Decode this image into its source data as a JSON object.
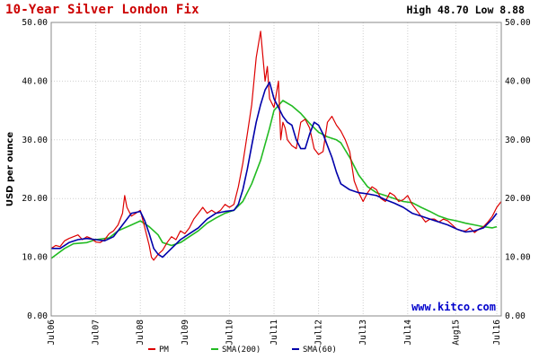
{
  "header": {
    "title": "10-Year Silver London Fix",
    "high_low": "High 48.70 Low 8.88"
  },
  "watermark": "www.kitco.com",
  "colors": {
    "pm": "#dd0000",
    "sma200": "#22bb22",
    "sma60": "#0000aa",
    "title": "#cc0000"
  },
  "chart_data": {
    "type": "line",
    "title": "10-Year Silver London Fix",
    "ylabel": "USD per ounce",
    "xlabel": "",
    "ylim": [
      0,
      50
    ],
    "xlim": [
      2006.5,
      2016.6
    ],
    "yticks": [
      "0.00",
      "10.00",
      "20.00",
      "30.00",
      "40.00",
      "50.00"
    ],
    "xticks": [
      {
        "label": "Jul06",
        "x": 2006.5
      },
      {
        "label": "Jul07",
        "x": 2007.5
      },
      {
        "label": "Jul08",
        "x": 2008.5
      },
      {
        "label": "Jul09",
        "x": 2009.5
      },
      {
        "label": "Jul10",
        "x": 2010.5
      },
      {
        "label": "Jul11",
        "x": 2011.5
      },
      {
        "label": "Jul12",
        "x": 2012.5
      },
      {
        "label": "Jul13",
        "x": 2013.5
      },
      {
        "label": "Jul14",
        "x": 2014.5
      },
      {
        "label": "Aug15",
        "x": 2015.58
      },
      {
        "label": "Jul16",
        "x": 2016.5
      }
    ],
    "grid": true,
    "legend_position": "bottom",
    "series": [
      {
        "name": "PM",
        "color": "#dd0000",
        "x": [
          2006.5,
          2006.6,
          2006.7,
          2006.8,
          2006.9,
          2007.0,
          2007.1,
          2007.2,
          2007.3,
          2007.4,
          2007.5,
          2007.6,
          2007.7,
          2007.8,
          2007.9,
          2008.0,
          2008.1,
          2008.15,
          2008.2,
          2008.3,
          2008.4,
          2008.5,
          2008.6,
          2008.7,
          2008.75,
          2008.8,
          2008.9,
          2009.0,
          2009.1,
          2009.2,
          2009.3,
          2009.4,
          2009.5,
          2009.6,
          2009.7,
          2009.8,
          2009.9,
          2010.0,
          2010.1,
          2010.2,
          2010.3,
          2010.4,
          2010.5,
          2010.6,
          2010.7,
          2010.8,
          2010.9,
          2011.0,
          2011.1,
          2011.2,
          2011.3,
          2011.35,
          2011.4,
          2011.5,
          2011.6,
          2011.65,
          2011.7,
          2011.75,
          2011.8,
          2011.9,
          2012.0,
          2012.1,
          2012.2,
          2012.3,
          2012.4,
          2012.5,
          2012.6,
          2012.7,
          2012.8,
          2012.9,
          2013.0,
          2013.1,
          2013.2,
          2013.3,
          2013.4,
          2013.5,
          2013.6,
          2013.7,
          2013.8,
          2013.9,
          2014.0,
          2014.1,
          2014.2,
          2014.3,
          2014.4,
          2014.5,
          2014.6,
          2014.7,
          2014.8,
          2014.9,
          2015.0,
          2015.1,
          2015.2,
          2015.3,
          2015.4,
          2015.5,
          2015.6,
          2015.7,
          2015.8,
          2015.9,
          2016.0,
          2016.1,
          2016.2,
          2016.3,
          2016.4,
          2016.5,
          2016.6
        ],
        "values": [
          11.5,
          12.0,
          11.8,
          12.8,
          13.2,
          13.5,
          13.8,
          13.0,
          13.5,
          13.2,
          12.6,
          12.5,
          13.0,
          14.0,
          14.5,
          15.5,
          17.5,
          20.5,
          18.5,
          17.0,
          17.5,
          18.0,
          15.0,
          12.0,
          10.0,
          9.5,
          10.5,
          11.2,
          12.5,
          13.5,
          13.0,
          14.5,
          14.0,
          15.0,
          16.5,
          17.5,
          18.5,
          17.5,
          18.0,
          17.5,
          18.0,
          19.0,
          18.5,
          19.0,
          22.0,
          26.0,
          31.0,
          36.0,
          44.0,
          48.5,
          40.0,
          42.5,
          37.0,
          35.5,
          40.0,
          30.0,
          33.0,
          32.0,
          30.0,
          29.0,
          28.5,
          33.0,
          33.5,
          32.0,
          28.5,
          27.5,
          28.0,
          33.0,
          34.0,
          32.5,
          31.5,
          30.0,
          28.0,
          23.0,
          21.0,
          19.5,
          21.0,
          22.0,
          21.5,
          20.0,
          19.5,
          21.0,
          20.5,
          19.5,
          19.8,
          20.5,
          19.0,
          18.0,
          17.0,
          16.0,
          16.5,
          16.5,
          16.0,
          16.5,
          16.2,
          15.5,
          14.8,
          14.5,
          14.5,
          15.0,
          14.2,
          14.8,
          15.2,
          16.0,
          17.0,
          18.5,
          19.5
        ]
      },
      {
        "name": "SMA(200)",
        "color": "#22bb22",
        "x": [
          2006.5,
          2006.8,
          2007.0,
          2007.3,
          2007.5,
          2007.8,
          2008.0,
          2008.3,
          2008.5,
          2008.7,
          2008.9,
          2009.0,
          2009.2,
          2009.4,
          2009.6,
          2009.8,
          2010.0,
          2010.2,
          2010.4,
          2010.6,
          2010.8,
          2011.0,
          2011.2,
          2011.4,
          2011.5,
          2011.7,
          2011.9,
          2012.1,
          2012.3,
          2012.5,
          2012.7,
          2012.9,
          2013.0,
          2013.2,
          2013.4,
          2013.6,
          2013.8,
          2014.0,
          2014.2,
          2014.4,
          2014.6,
          2014.8,
          2015.0,
          2015.2,
          2015.4,
          2015.6,
          2015.8,
          2016.0,
          2016.2,
          2016.4,
          2016.5
        ],
        "values": [
          9.8,
          11.5,
          12.3,
          12.5,
          13.0,
          13.3,
          14.5,
          15.5,
          16.2,
          15.2,
          13.8,
          12.5,
          12.0,
          12.5,
          13.5,
          14.5,
          15.8,
          16.7,
          17.5,
          18.0,
          19.5,
          22.5,
          26.5,
          32.0,
          35.0,
          36.7,
          35.8,
          34.5,
          32.8,
          31.3,
          30.5,
          30.0,
          29.5,
          27.0,
          24.0,
          22.0,
          21.0,
          20.5,
          20.0,
          19.5,
          19.3,
          18.5,
          17.8,
          17.0,
          16.5,
          16.2,
          15.8,
          15.5,
          15.2,
          15.0,
          15.2
        ]
      },
      {
        "name": "SMA(60)",
        "color": "#0000aa",
        "x": [
          2006.5,
          2006.7,
          2006.9,
          2007.1,
          2007.3,
          2007.5,
          2007.7,
          2007.9,
          2008.1,
          2008.3,
          2008.5,
          2008.6,
          2008.7,
          2008.8,
          2008.9,
          2009.0,
          2009.2,
          2009.4,
          2009.6,
          2009.8,
          2010.0,
          2010.2,
          2010.4,
          2010.6,
          2010.7,
          2010.8,
          2010.9,
          2011.0,
          2011.1,
          2011.2,
          2011.3,
          2011.4,
          2011.5,
          2011.6,
          2011.7,
          2011.8,
          2011.9,
          2012.0,
          2012.1,
          2012.2,
          2012.3,
          2012.4,
          2012.5,
          2012.6,
          2012.7,
          2012.8,
          2012.9,
          2013.0,
          2013.2,
          2013.4,
          2013.6,
          2013.8,
          2014.0,
          2014.2,
          2014.4,
          2014.6,
          2014.8,
          2015.0,
          2015.2,
          2015.4,
          2015.6,
          2015.8,
          2016.0,
          2016.2,
          2016.4,
          2016.5
        ],
        "values": [
          11.5,
          11.5,
          12.5,
          13.0,
          13.2,
          13.0,
          12.8,
          13.5,
          15.5,
          17.5,
          17.8,
          16.2,
          14.0,
          11.5,
          10.5,
          10.0,
          11.5,
          13.0,
          14.0,
          15.0,
          16.5,
          17.5,
          17.8,
          18.0,
          19.0,
          21.5,
          25.0,
          29.0,
          33.0,
          36.0,
          38.5,
          39.8,
          37.0,
          35.5,
          34.0,
          33.0,
          32.5,
          30.0,
          28.5,
          28.5,
          31.0,
          33.0,
          32.5,
          31.0,
          29.0,
          27.0,
          24.5,
          22.5,
          21.5,
          21.0,
          20.8,
          20.5,
          19.8,
          19.2,
          18.5,
          17.5,
          17.0,
          16.5,
          16.0,
          15.5,
          14.8,
          14.3,
          14.5,
          15.0,
          16.5,
          17.5
        ]
      }
    ]
  },
  "legend": [
    {
      "label": "PM",
      "color": "#dd0000"
    },
    {
      "label": "SMA(200)",
      "color": "#22bb22"
    },
    {
      "label": "SMA(60)",
      "color": "#0000aa"
    }
  ]
}
